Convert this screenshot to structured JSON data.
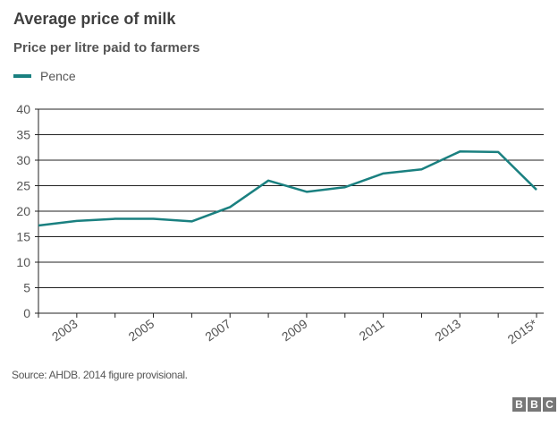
{
  "chart_data": {
    "type": "line",
    "title": "Average price of milk",
    "subtitle": "Price per litre paid to farmers",
    "x": [
      2002,
      2003,
      2004,
      2005,
      2006,
      2007,
      2008,
      2009,
      2010,
      2011,
      2012,
      2013,
      2014,
      2015
    ],
    "x_tick_labels": [
      "2003",
      "2005",
      "2007",
      "2009",
      "2011",
      "2013",
      "2015*"
    ],
    "x_tick_label_years": [
      2003,
      2005,
      2007,
      2009,
      2011,
      2013,
      2015
    ],
    "ylim": [
      0,
      40
    ],
    "y_ticks": [
      0,
      5,
      10,
      15,
      20,
      25,
      30,
      35,
      40
    ],
    "grid": true,
    "legend_placement": "top-left",
    "series": [
      {
        "name": "Pence",
        "color": "#1a8080",
        "values": [
          17.2,
          18.1,
          18.5,
          18.5,
          18.0,
          20.8,
          26.0,
          23.8,
          24.7,
          27.4,
          28.2,
          31.7,
          31.6,
          24.2
        ]
      }
    ],
    "source": "Source: AHDB. 2014 figure provisional.",
    "logo": [
      "B",
      "B",
      "C"
    ]
  }
}
